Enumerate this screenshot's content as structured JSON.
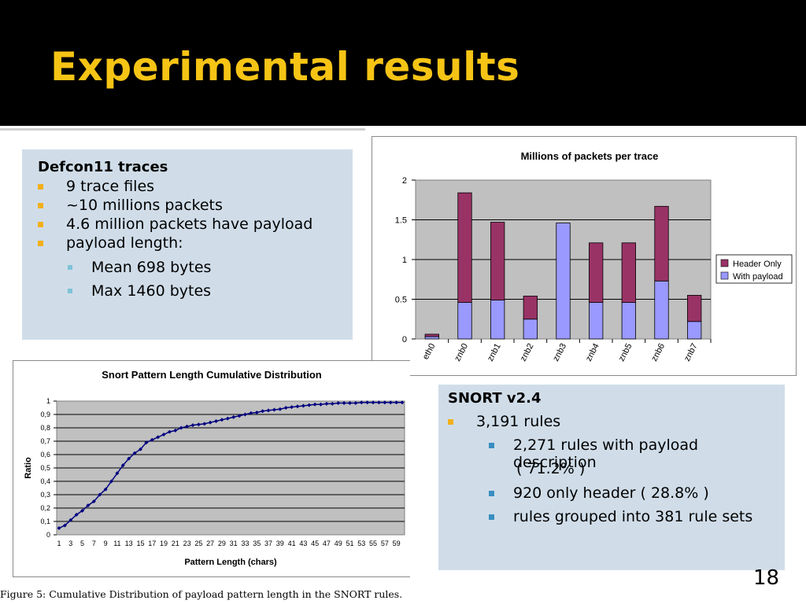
{
  "slide": {
    "title": "Experimental results",
    "number": "18"
  },
  "defcon": {
    "heading": "Defcon11 traces",
    "items": [
      "9 trace files",
      "~10 millions packets",
      "4.6 million packets have payload",
      "payload length:"
    ],
    "subitems": [
      "Mean 698 bytes",
      "Max 1460 bytes"
    ]
  },
  "snort": {
    "heading": "SNORT v2.4",
    "rules": "3,191 rules",
    "subitems": [
      "2,271 rules with payload description",
      "( 71.2% )",
      "920 only header ( 28.8% )",
      "rules grouped into 381 rule sets"
    ]
  },
  "caption": "Figure 5:  Cumulative Distribution of payload pattern length in the SNORT rules.",
  "chart_data": [
    {
      "type": "bar",
      "stacked": true,
      "title": "Millions of packets per trace",
      "categories": [
        "eth0",
        "znb0",
        "znb1",
        "znb2",
        "znb3",
        "znb4",
        "znb5",
        "znb6",
        "znb7"
      ],
      "series": [
        {
          "name": "With payload",
          "color": "#9999ff",
          "values": [
            0.03,
            0.46,
            0.49,
            0.25,
            1.46,
            0.46,
            0.46,
            0.73,
            0.22
          ]
        },
        {
          "name": "Header Only",
          "color": "#993366",
          "values": [
            0.03,
            1.38,
            0.98,
            0.29,
            0.0,
            0.75,
            0.75,
            0.94,
            0.33
          ]
        }
      ],
      "yticks": [
        "0",
        "0.5",
        "1",
        "1.5",
        "2"
      ],
      "ylim": [
        0,
        2
      ],
      "legend": "right",
      "plot_bg": "#c0c0c0",
      "grid": true
    },
    {
      "type": "line",
      "title": "Snort Pattern Length Cumulative Distribution",
      "xlabel": "Pattern Length (chars)",
      "ylabel": "Ratio",
      "x": [
        1,
        2,
        3,
        4,
        5,
        6,
        7,
        8,
        9,
        10,
        11,
        12,
        13,
        14,
        15,
        16,
        17,
        18,
        19,
        20,
        21,
        22,
        23,
        24,
        25,
        26,
        27,
        28,
        29,
        30,
        31,
        32,
        33,
        34,
        35,
        36,
        37,
        38,
        39,
        40,
        41,
        42,
        43,
        44,
        45,
        46,
        47,
        48,
        49,
        50,
        51,
        52,
        53,
        54,
        55,
        56,
        57,
        58,
        59,
        60
      ],
      "y": [
        0.05,
        0.07,
        0.11,
        0.15,
        0.18,
        0.22,
        0.25,
        0.3,
        0.34,
        0.4,
        0.46,
        0.52,
        0.57,
        0.61,
        0.64,
        0.69,
        0.71,
        0.73,
        0.75,
        0.77,
        0.78,
        0.8,
        0.81,
        0.82,
        0.825,
        0.83,
        0.84,
        0.85,
        0.86,
        0.87,
        0.88,
        0.89,
        0.9,
        0.91,
        0.915,
        0.925,
        0.93,
        0.935,
        0.94,
        0.95,
        0.955,
        0.96,
        0.965,
        0.97,
        0.975,
        0.975,
        0.98,
        0.98,
        0.985,
        0.985,
        0.985,
        0.985,
        0.99,
        0.99,
        0.99,
        0.99,
        0.99,
        0.99,
        0.99,
        0.99
      ],
      "xticks": [
        "1",
        "3",
        "5",
        "7",
        "9",
        "11",
        "13",
        "15",
        "17",
        "19",
        "21",
        "23",
        "25",
        "27",
        "29",
        "31",
        "33",
        "35",
        "37",
        "39",
        "41",
        "43",
        "45",
        "47",
        "49",
        "51",
        "53",
        "55",
        "57",
        "59"
      ],
      "yticks": [
        "0",
        "0,1",
        "0,2",
        "0,3",
        "0,4",
        "0,5",
        "0,6",
        "0,7",
        "0,8",
        "0,9",
        "1"
      ],
      "ylim": [
        0,
        1
      ],
      "line_color": "#000080",
      "plot_bg": "#c0c0c0",
      "grid": true
    }
  ]
}
